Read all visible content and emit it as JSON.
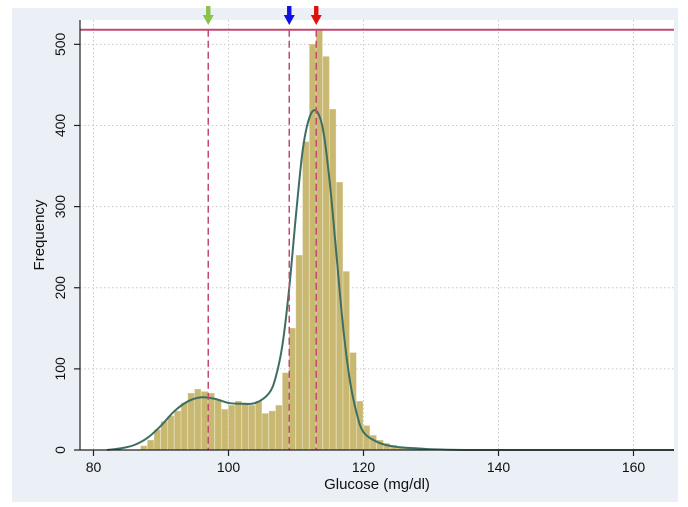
{
  "chart_data": {
    "type": "bar",
    "xlabel": "Glucose (mg/dl)",
    "ylabel": "Frequency",
    "xlim": [
      78,
      166
    ],
    "ylim": [
      0,
      530
    ],
    "x_ticks": [
      "80",
      "100",
      "120",
      "140",
      "160"
    ],
    "y_ticks": [
      "0",
      "100",
      "200",
      "300",
      "400",
      "500"
    ],
    "grid": true,
    "bin_width": 1,
    "histogram": {
      "bin_starts": [
        87,
        88,
        89,
        90,
        91,
        92,
        93,
        94,
        95,
        96,
        97,
        98,
        99,
        100,
        101,
        102,
        103,
        104,
        105,
        106,
        107,
        108,
        109,
        110,
        111,
        112,
        113,
        114,
        115,
        116,
        117,
        118,
        119,
        120,
        121,
        122,
        123,
        124,
        125,
        126,
        127
      ],
      "frequencies": [
        5,
        12,
        25,
        35,
        42,
        48,
        58,
        70,
        75,
        72,
        70,
        62,
        50,
        55,
        60,
        58,
        55,
        60,
        45,
        48,
        55,
        95,
        150,
        240,
        380,
        500,
        518,
        485,
        420,
        330,
        220,
        120,
        60,
        30,
        18,
        12,
        8,
        6,
        4,
        3,
        2
      ],
      "color": "#c8b872"
    },
    "density_curve": {
      "x": [
        82,
        84,
        86,
        88,
        90,
        92,
        94,
        96,
        98,
        100,
        102,
        104,
        106,
        107,
        108,
        109,
        110,
        111,
        112,
        113,
        114,
        115,
        116,
        117,
        118,
        119,
        120,
        122,
        124,
        126,
        128,
        130,
        135,
        140,
        150,
        160,
        166
      ],
      "y": [
        0,
        2,
        6,
        15,
        30,
        48,
        60,
        65,
        63,
        58,
        57,
        58,
        70,
        90,
        130,
        200,
        290,
        370,
        410,
        418,
        395,
        330,
        240,
        150,
        85,
        45,
        22,
        10,
        5,
        3,
        2,
        1,
        0,
        0,
        0,
        0,
        0
      ],
      "color": "#3e6e62"
    },
    "reference_line": {
      "y": 518,
      "color": "#c2496f"
    },
    "marked_values": [
      {
        "x": 97,
        "arrow_color": "#8bc34a"
      },
      {
        "x": 109,
        "arrow_color": "#1010e0"
      },
      {
        "x": 113,
        "arrow_color": "#e01010"
      }
    ],
    "marker_line_color": "#c2496f"
  }
}
